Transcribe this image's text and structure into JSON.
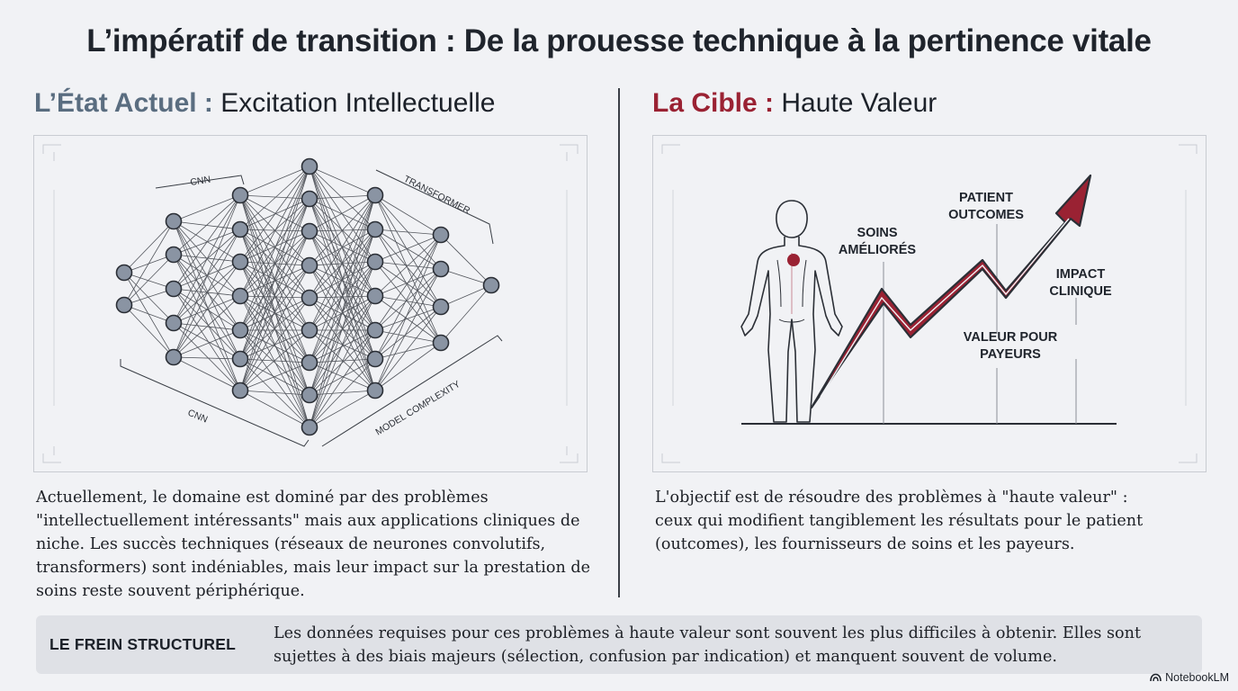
{
  "title": "L’impératif de transition : De la prouesse technique à la pertinence vitale",
  "left": {
    "heading_key": "L’État Actuel :",
    "heading_rest": "Excitation Intellectuelle",
    "labels": {
      "cnn_top": "CNN",
      "transformer": "TRANSFORMER",
      "cnn_bottom": "CNN",
      "model_complexity": "MODEL COMPLEXITY"
    },
    "paragraph": "Actuellement, le domaine est dominé par des problèmes \"intellectuellement intéressants\" mais aux applications cliniques de niche. Les succès techniques (réseaux de neurones convolutifs, transformers) sont indéniables, mais leur impact sur la prestation de soins reste souvent périphérique."
  },
  "right": {
    "heading_key": "La Cible :",
    "heading_rest": "Haute Valeur",
    "labels": {
      "soins_1": "SOINS",
      "soins_2": "AMÉLIORÉS",
      "patient_1": "PATIENT",
      "patient_2": "OUTCOMES",
      "impact_1": "IMPACT",
      "impact_2": "CLINIQUE",
      "valeur_1": "VALEUR POUR",
      "valeur_2": "PAYEURS"
    },
    "paragraph": "L'objectif est de résoudre des problèmes à \"haute valeur\" : ceux qui modifient tangiblement les résultats pour le patient (outcomes), les fournisseurs de soins et les payeurs."
  },
  "banner": {
    "label": "LE FREIN STRUCTUREL",
    "text": "Les données requises pour ces problèmes à haute valeur sont souvent les plus difficiles à obtenir. Elles sont sujettes à des biais majeurs (sélection, confusion par indication) et manquent souvent de volume."
  },
  "brand": "NotebookLM",
  "colors": {
    "accent_red": "#9a2233",
    "accent_slate": "#5a6d80",
    "node_fill": "#8a94a3"
  },
  "icons": [
    "neural-network-diagram",
    "human-body-icon",
    "rising-arrow-icon",
    "notebooklm-logo-icon"
  ]
}
